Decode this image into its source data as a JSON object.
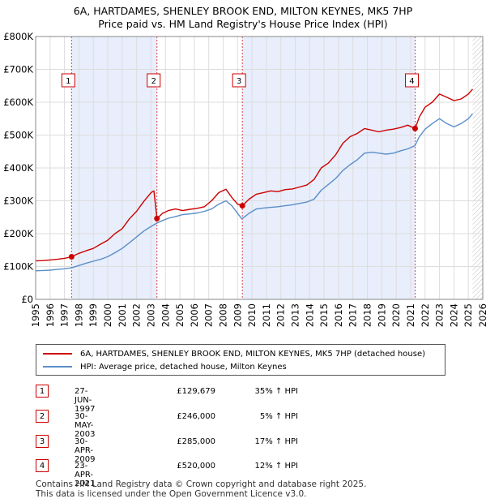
{
  "title_line1": "6A, HARTDAMES, SHENLEY BROOK END, MILTON KEYNES, MK5 7HP",
  "title_line2": "Price paid vs. HM Land Registry's House Price Index (HPI)",
  "chart_data": {
    "type": "line",
    "ylim": [
      0,
      800000
    ],
    "xlim": [
      1995,
      2026
    ],
    "y_ticks": [
      0,
      100000,
      200000,
      300000,
      400000,
      500000,
      600000,
      700000,
      800000
    ],
    "y_tick_labels": [
      "£0",
      "£100K",
      "£200K",
      "£300K",
      "£400K",
      "£500K",
      "£600K",
      "£700K",
      "£800K"
    ],
    "x_ticks": [
      1995,
      1996,
      1997,
      1998,
      1999,
      2000,
      2001,
      2002,
      2003,
      2004,
      2005,
      2006,
      2007,
      2008,
      2009,
      2010,
      2011,
      2012,
      2013,
      2014,
      2015,
      2016,
      2017,
      2018,
      2019,
      2020,
      2021,
      2022,
      2023,
      2024,
      2025,
      2026
    ],
    "x_tick_labels": [
      "1995",
      "1996",
      "1997",
      "1998",
      "1999",
      "2000",
      "2001",
      "2002",
      "2003",
      "2004",
      "2005",
      "2006",
      "2007",
      "2008",
      "2009",
      "2010",
      "2011",
      "2012",
      "2013",
      "2014",
      "2015",
      "2016",
      "2017",
      "2018",
      "2019",
      "2020",
      "2021",
      "2022",
      "2023",
      "2024",
      "2025",
      "2026"
    ],
    "grid": true,
    "series": [
      {
        "name": "6A, HARTDAMES, SHENLEY BROOK END, MILTON KEYNES, MK5 7HP (detached house)",
        "color": "#cc0000",
        "x": [
          1995.0,
          1995.5,
          1996.0,
          1996.5,
          1997.0,
          1997.49,
          1998.0,
          1998.5,
          1999.0,
          1999.5,
          2000.0,
          2000.5,
          2001.0,
          2001.5,
          2002.0,
          2002.5,
          2003.0,
          2003.2,
          2003.41,
          2003.8,
          2004.2,
          2004.7,
          2005.2,
          2005.7,
          2006.2,
          2006.7,
          2007.2,
          2007.7,
          2008.2,
          2008.6,
          2009.0,
          2009.33,
          2009.8,
          2010.3,
          2010.8,
          2011.3,
          2011.8,
          2012.3,
          2012.8,
          2013.3,
          2013.8,
          2014.3,
          2014.8,
          2015.3,
          2015.8,
          2016.3,
          2016.8,
          2017.3,
          2017.8,
          2018.3,
          2018.8,
          2019.3,
          2019.8,
          2020.3,
          2020.8,
          2021.31,
          2021.6,
          2022.0,
          2022.5,
          2023.0,
          2023.5,
          2024.0,
          2024.5,
          2025.0,
          2025.3
        ],
        "values": [
          117000,
          118000,
          120000,
          122000,
          125000,
          129679,
          140000,
          148000,
          155000,
          168000,
          180000,
          200000,
          215000,
          245000,
          268000,
          298000,
          325000,
          330000,
          246000,
          262000,
          270000,
          275000,
          270000,
          274000,
          277000,
          282000,
          300000,
          325000,
          335000,
          310000,
          290000,
          285000,
          305000,
          320000,
          325000,
          330000,
          328000,
          334000,
          336000,
          342000,
          348000,
          365000,
          400000,
          415000,
          440000,
          475000,
          495000,
          505000,
          520000,
          515000,
          510000,
          515000,
          518000,
          523000,
          530000,
          520000,
          555000,
          585000,
          600000,
          625000,
          615000,
          605000,
          610000,
          625000,
          640000
        ]
      },
      {
        "name": "HPI: Average price, detached house, Milton Keynes",
        "color": "#5b8ec8",
        "x": [
          1995.0,
          1995.5,
          1996.0,
          1996.5,
          1997.0,
          1997.5,
          1998.0,
          1998.5,
          1999.0,
          1999.5,
          2000.0,
          2000.5,
          2001.0,
          2001.5,
          2002.0,
          2002.5,
          2003.0,
          2003.4,
          2003.8,
          2004.2,
          2004.7,
          2005.2,
          2005.7,
          2006.2,
          2006.7,
          2007.2,
          2007.7,
          2008.2,
          2008.6,
          2009.0,
          2009.3,
          2009.8,
          2010.3,
          2010.8,
          2011.3,
          2011.8,
          2012.3,
          2012.8,
          2013.3,
          2013.8,
          2014.3,
          2014.8,
          2015.3,
          2015.8,
          2016.3,
          2016.8,
          2017.3,
          2017.8,
          2018.3,
          2018.8,
          2019.3,
          2019.8,
          2020.3,
          2020.8,
          2021.3,
          2021.6,
          2022.0,
          2022.5,
          2023.0,
          2023.5,
          2024.0,
          2024.5,
          2025.0,
          2025.3
        ],
        "values": [
          87000,
          88000,
          89000,
          91000,
          93000,
          96000,
          103000,
          110000,
          116000,
          122000,
          130000,
          142000,
          155000,
          172000,
          190000,
          208000,
          222000,
          232000,
          240000,
          247000,
          252000,
          258000,
          260000,
          263000,
          268000,
          275000,
          290000,
          300000,
          285000,
          262000,
          245000,
          262000,
          275000,
          278000,
          280000,
          282000,
          285000,
          288000,
          292000,
          296000,
          305000,
          332000,
          350000,
          368000,
          392000,
          410000,
          425000,
          445000,
          448000,
          445000,
          442000,
          445000,
          452000,
          458000,
          468000,
          495000,
          518000,
          535000,
          550000,
          535000,
          525000,
          535000,
          550000,
          565000
        ]
      }
    ],
    "markers": [
      {
        "label": "1",
        "x": 1997.49,
        "y": 129679
      },
      {
        "label": "2",
        "x": 2003.41,
        "y": 246000
      },
      {
        "label": "3",
        "x": 2009.33,
        "y": 285000
      },
      {
        "label": "4",
        "x": 2021.31,
        "y": 520000
      }
    ]
  },
  "legend": {
    "property_label": "6A, HARTDAMES, SHENLEY BROOK END, MILTON KEYNES, MK5 7HP (detached house)",
    "hpi_label": "HPI: Average price, detached house, Milton Keynes"
  },
  "transactions": [
    {
      "num": "1",
      "date": "27-JUN-1997",
      "price": "£129,679",
      "pct": "35% ↑ HPI"
    },
    {
      "num": "2",
      "date": "30-MAY-2003",
      "price": "£246,000",
      "pct": "5% ↑ HPI"
    },
    {
      "num": "3",
      "date": "30-APR-2009",
      "price": "£285,000",
      "pct": "17% ↑ HPI"
    },
    {
      "num": "4",
      "date": "23-APR-2021",
      "price": "£520,000",
      "pct": "12% ↑ HPI"
    }
  ],
  "footer_line1": "Contains HM Land Registry data © Crown copyright and database right 2025.",
  "footer_line2": "This data is licensed under the Open Government Licence v3.0.",
  "colors": {
    "property": "#cc0000",
    "hpi": "#5b8ec8",
    "shade": "#e8eefb",
    "grid": "#dddddd"
  }
}
